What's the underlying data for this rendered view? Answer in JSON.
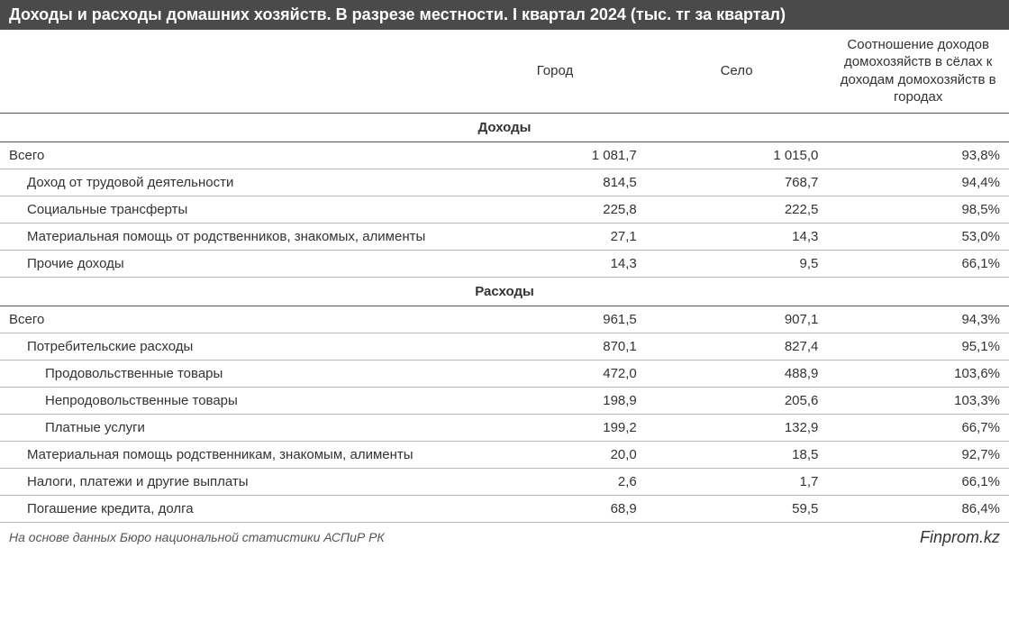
{
  "title": "Доходы и расходы домашних хозяйств. В разрезе местности. I квартал 2024 (тыс. тг за квартал)",
  "columns": {
    "label": "",
    "city": "Город",
    "village": "Село",
    "ratio": "Соотношение доходов домохозяйств в сёлах к доходам домохозяйств в городах"
  },
  "sections": [
    {
      "header": "Доходы",
      "rows": [
        {
          "label": "Всего",
          "city": "1 081,7",
          "village": "1 015,0",
          "ratio": "93,8%",
          "indent": 0
        },
        {
          "label": "Доход от трудовой деятельности",
          "city": "814,5",
          "village": "768,7",
          "ratio": "94,4%",
          "indent": 1
        },
        {
          "label": "Социальные трансферты",
          "city": "225,8",
          "village": "222,5",
          "ratio": "98,5%",
          "indent": 1
        },
        {
          "label": "Материальная помощь от родственников, знакомых, алименты",
          "city": "27,1",
          "village": "14,3",
          "ratio": "53,0%",
          "indent": 1
        },
        {
          "label": "Прочие доходы",
          "city": "14,3",
          "village": "9,5",
          "ratio": "66,1%",
          "indent": 1
        }
      ]
    },
    {
      "header": "Расходы",
      "rows": [
        {
          "label": "Всего",
          "city": "961,5",
          "village": "907,1",
          "ratio": "94,3%",
          "indent": 0
        },
        {
          "label": "Потребительские расходы",
          "city": "870,1",
          "village": "827,4",
          "ratio": "95,1%",
          "indent": 1
        },
        {
          "label": "Продовольственные товары",
          "city": "472,0",
          "village": "488,9",
          "ratio": "103,6%",
          "indent": 2
        },
        {
          "label": "Непродовольственные товары",
          "city": "198,9",
          "village": "205,6",
          "ratio": "103,3%",
          "indent": 2
        },
        {
          "label": "Платные услуги",
          "city": "199,2",
          "village": "132,9",
          "ratio": "66,7%",
          "indent": 2
        },
        {
          "label": "Материальная помощь родственникам, знакомым, алименты",
          "city": "20,0",
          "village": "18,5",
          "ratio": "92,7%",
          "indent": 1
        },
        {
          "label": "Налоги, платежи и другие выплаты",
          "city": "2,6",
          "village": "1,7",
          "ratio": "66,1%",
          "indent": 1
        },
        {
          "label": "Погашение кредита, долга",
          "city": "68,9",
          "village": "59,5",
          "ratio": "86,4%",
          "indent": 1
        }
      ]
    }
  ],
  "source": "На основе данных Бюро национальной статистики АСПиР РК",
  "brand": "Finprom.kz",
  "styles": {
    "title_bg": "#4a4a4a",
    "title_color": "#ffffff",
    "row_border_color": "#b8b8b8",
    "section_border_color": "#555555",
    "body_bg": "#ffffff",
    "text_color": "#333333",
    "title_fontsize": 18,
    "cell_fontsize": 15,
    "source_fontsize": 14,
    "brand_fontsize": 18,
    "col_widths_pct": [
      46,
      18,
      18,
      18
    ]
  }
}
